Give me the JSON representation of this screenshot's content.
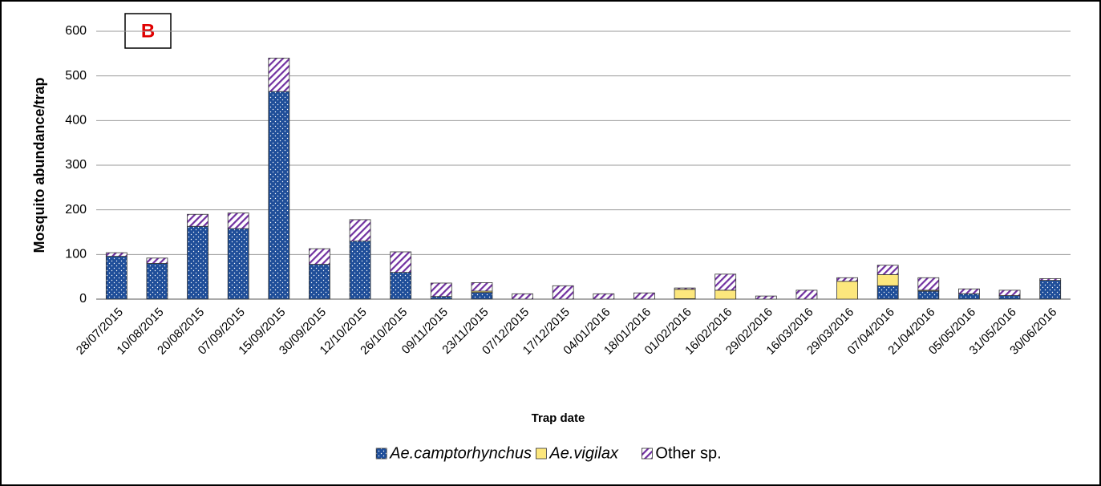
{
  "chart_data": {
    "type": "stacked_bar",
    "panel_label": "B",
    "xlabel": "Trap date",
    "ylabel": "Mosquito abundance/trap",
    "categories": [
      "28/07/2015",
      "10/08/2015",
      "20/08/2015",
      "07/09/2015",
      "15/09/2015",
      "30/09/2015",
      "12/10/2015",
      "26/10/2015",
      "09/11/2015",
      "23/11/2015",
      "07/12/2015",
      "17/12/2015",
      "04/01/2016",
      "18/01/2016",
      "01/02/2016",
      "16/02/2016",
      "29/02/2016",
      "16/03/2016",
      "29/03/2016",
      "07/04/2016",
      "21/04/2016",
      "05/05/2016",
      "31/05/2016",
      "30/06/2016"
    ],
    "series": [
      {
        "name": "Ae.camptorhynchus",
        "color": "#1f4e99",
        "pattern": "dots",
        "italic": true,
        "values": [
          96,
          80,
          163,
          158,
          465,
          78,
          130,
          60,
          6,
          15,
          0,
          0,
          0,
          0,
          1,
          0,
          0,
          0,
          0,
          30,
          18,
          12,
          8,
          42
        ]
      },
      {
        "name": "Ae.vigilax",
        "color": "#fce77d",
        "pattern": "solid",
        "italic": true,
        "values": [
          0,
          0,
          0,
          0,
          0,
          0,
          0,
          0,
          0,
          3,
          0,
          0,
          0,
          0,
          21,
          20,
          0,
          0,
          40,
          25,
          2,
          0,
          0,
          0
        ]
      },
      {
        "name": "Other sp.",
        "color": "#7030a0",
        "pattern": "hatch",
        "italic": false,
        "values": [
          8,
          12,
          27,
          35,
          75,
          35,
          48,
          46,
          30,
          19,
          12,
          30,
          12,
          14,
          3,
          36,
          7,
          20,
          8,
          21,
          28,
          11,
          12,
          4
        ]
      }
    ],
    "ylim": [
      0,
      600
    ],
    "yticks": [
      0,
      100,
      200,
      300,
      400,
      500,
      600
    ],
    "grid": true,
    "legend": "bottom"
  }
}
